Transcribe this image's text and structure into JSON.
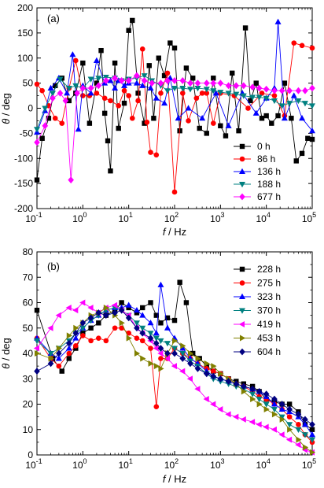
{
  "figure": {
    "panel_a": {
      "label": "(a)",
      "xlabel_var": "f",
      "xlabel_unit": " / Hz",
      "ylabel_var": "θ",
      "ylabel_unit": " / deg",
      "yticks": [
        "-200",
        "-150",
        "-100",
        "-50",
        "0",
        "50",
        "100",
        "150",
        "200"
      ],
      "xticks_base": [
        "10",
        "10",
        "10",
        "10",
        "10",
        "10",
        "10"
      ],
      "xticks_exp": [
        "-1",
        "0",
        "1",
        "2",
        "3",
        "4",
        "5"
      ]
    },
    "panel_b": {
      "label": "(b)",
      "xlabel_var": "f",
      "xlabel_unit": " / Hz",
      "ylabel_var": "θ",
      "ylabel_unit": " / deg",
      "yticks": [
        "0",
        "10",
        "20",
        "30",
        "40",
        "50",
        "60",
        "70",
        "80"
      ],
      "xticks_base": [
        "10",
        "10",
        "10",
        "10",
        "10",
        "10",
        "10"
      ],
      "xticks_exp": [
        "-1",
        "0",
        "1",
        "2",
        "3",
        "4",
        "5"
      ]
    }
  },
  "chart_data": [
    {
      "type": "line",
      "panel": "(a)",
      "xscale": "log",
      "xlim": [
        0.1,
        100000
      ],
      "ylim": [
        -200,
        200
      ],
      "xlabel": "f / Hz",
      "ylabel": "θ / deg",
      "legend_position": "bottom-right",
      "series": [
        {
          "name": "0 h",
          "color": "#000000",
          "marker": "square",
          "x": [
            0.1,
            0.13,
            0.18,
            0.25,
            0.35,
            0.5,
            0.7,
            1,
            1.4,
            2,
            2.5,
            3,
            3.5,
            4,
            5,
            6,
            8,
            10,
            12,
            16,
            22,
            28,
            35,
            45,
            60,
            80,
            100,
            130,
            180,
            250,
            350,
            500,
            700,
            1000,
            1300,
            1800,
            2500,
            3500,
            4500,
            6000,
            8000,
            10000,
            13000,
            18000,
            25000,
            35000,
            45000,
            60000,
            80000,
            100000
          ],
          "y": [
            -143,
            -60,
            -20,
            45,
            60,
            15,
            30,
            90,
            -30,
            50,
            115,
            -10,
            -65,
            -125,
            90,
            -40,
            10,
            155,
            175,
            30,
            -30,
            85,
            -20,
            100,
            65,
            130,
            120,
            -45,
            80,
            60,
            -40,
            -50,
            60,
            -35,
            -55,
            70,
            -45,
            160,
            15,
            50,
            -20,
            -15,
            -30,
            -15,
            50,
            -20,
            -105,
            -90,
            -60,
            -62
          ]
        },
        {
          "name": "86 h",
          "color": "#ff0000",
          "marker": "circle",
          "x": [
            0.1,
            0.13,
            0.18,
            0.25,
            0.35,
            0.5,
            0.7,
            1,
            1.4,
            2,
            3,
            4,
            6,
            8,
            10,
            12,
            16,
            20,
            25,
            30,
            40,
            50,
            70,
            100,
            150,
            200,
            300,
            400,
            500,
            700,
            1000,
            2000,
            4000,
            8000,
            15000,
            25000,
            40000,
            60000,
            100000
          ],
          "y": [
            48,
            35,
            5,
            -20,
            -30,
            40,
            95,
            25,
            25,
            30,
            20,
            15,
            5,
            35,
            25,
            -20,
            15,
            118,
            -28,
            -88,
            -93,
            30,
            70,
            -167,
            30,
            -25,
            20,
            30,
            30,
            -30,
            30,
            25,
            0,
            30,
            25,
            -15,
            130,
            125,
            120
          ]
        },
        {
          "name": "136 h",
          "color": "#0000ff",
          "marker": "triangle-up",
          "x": [
            0.1,
            0.15,
            0.2,
            0.3,
            0.45,
            0.6,
            0.8,
            1,
            1.5,
            2,
            3,
            4,
            5,
            6,
            8,
            10,
            15,
            20,
            30,
            40,
            60,
            80,
            120,
            200,
            400,
            800,
            1500,
            3000,
            6000,
            10000,
            15000,
            18000,
            25000,
            40000,
            60000,
            100000
          ],
          "y": [
            -48,
            -5,
            40,
            60,
            30,
            107,
            -42,
            45,
            30,
            95,
            50,
            55,
            40,
            55,
            45,
            50,
            50,
            45,
            40,
            20,
            10,
            60,
            -20,
            0,
            -20,
            30,
            -35,
            30,
            -10,
            20,
            40,
            172,
            -20,
            25,
            -20,
            -45
          ]
        },
        {
          "name": "188 h",
          "color": "#008080",
          "marker": "triangle-down",
          "x": [
            0.1,
            0.15,
            0.22,
            0.32,
            0.5,
            0.7,
            1,
            1.5,
            2.2,
            3.2,
            5,
            7,
            10,
            15,
            22,
            32,
            50,
            70,
            100,
            150,
            220,
            320,
            500,
            700,
            1000,
            1500,
            2200,
            3200,
            5000,
            7000,
            10000,
            15000,
            22000,
            32000,
            50000,
            70000,
            100000
          ],
          "y": [
            -42,
            0,
            30,
            58,
            40,
            45,
            40,
            58,
            60,
            62,
            60,
            55,
            58,
            60,
            65,
            55,
            45,
            35,
            40,
            40,
            38,
            40,
            38,
            35,
            32,
            30,
            28,
            25,
            22,
            22,
            20,
            15,
            5,
            10,
            15,
            10,
            5
          ]
        },
        {
          "name": "677 h",
          "color": "#ff00ff",
          "marker": "diamond",
          "x": [
            0.1,
            0.15,
            0.22,
            0.32,
            0.42,
            0.55,
            0.75,
            1,
            1.5,
            2.2,
            3.2,
            5,
            7,
            10,
            15,
            22,
            32,
            50,
            70,
            100,
            150,
            220,
            320,
            500,
            700,
            1000,
            1500,
            2200,
            3200,
            5000,
            7000,
            10000,
            15000,
            22000,
            32000,
            50000,
            70000,
            100000
          ],
          "y": [
            -68,
            -35,
            20,
            30,
            15,
            -143,
            30,
            40,
            40,
            45,
            55,
            60,
            55,
            55,
            65,
            55,
            50,
            50,
            55,
            55,
            55,
            50,
            50,
            50,
            50,
            50,
            45,
            45,
            45,
            42,
            40,
            38,
            35,
            35,
            35,
            35,
            35,
            40
          ]
        }
      ]
    },
    {
      "type": "line",
      "panel": "(b)",
      "xscale": "log",
      "xlim": [
        0.1,
        100000
      ],
      "ylim": [
        0,
        80
      ],
      "xlabel": "f / Hz",
      "ylabel": "θ / deg",
      "legend_position": "top-right",
      "series": [
        {
          "name": "228 h",
          "color": "#000000",
          "marker": "square",
          "x": [
            0.1,
            0.22,
            0.35,
            0.5,
            0.7,
            1,
            1.5,
            2.2,
            3.2,
            5,
            7,
            10,
            15,
            20,
            30,
            40,
            50,
            70,
            100,
            130,
            180,
            250,
            350,
            500,
            700,
            1000,
            1500,
            2200,
            3200,
            5000,
            7000,
            10000,
            15000,
            22000,
            32000,
            50000,
            70000,
            100000
          ],
          "y": [
            57,
            38,
            33,
            38,
            42,
            48,
            50,
            52,
            55,
            57,
            60,
            58,
            56,
            58,
            60,
            55,
            52,
            54,
            53,
            68,
            60,
            40,
            38,
            35,
            33,
            32,
            30,
            29,
            28,
            27,
            25,
            22,
            21,
            20,
            20,
            17,
            12,
            10
          ]
        },
        {
          "name": "275 h",
          "color": "#ff0000",
          "marker": "circle",
          "x": [
            0.1,
            0.2,
            0.3,
            0.5,
            0.7,
            1,
            1.5,
            2.2,
            3.2,
            5,
            7,
            10,
            15,
            20,
            30,
            40,
            50,
            70,
            100,
            150,
            220,
            320,
            500,
            700,
            1000,
            1500,
            2200,
            3200,
            5000,
            7000,
            10000,
            15000,
            22000,
            32000,
            50000,
            70000,
            100000
          ],
          "y": [
            46,
            38,
            35,
            40,
            43,
            47,
            45,
            46,
            45,
            50,
            50,
            48,
            46,
            45,
            42,
            19,
            38,
            38,
            42,
            40,
            38,
            36,
            34,
            33,
            32,
            30,
            28,
            27,
            25,
            23,
            22,
            20,
            18,
            15,
            12,
            8,
            5
          ]
        },
        {
          "name": "323 h",
          "color": "#0000ff",
          "marker": "triangle-up",
          "x": [
            0.1,
            0.2,
            0.3,
            0.5,
            0.7,
            1,
            1.5,
            2.2,
            3.2,
            5,
            7,
            10,
            15,
            20,
            30,
            40,
            50,
            70,
            100,
            150,
            220,
            320,
            500,
            700,
            1000,
            1500,
            2200,
            3200,
            5000,
            7000,
            10000,
            15000,
            22000,
            32000,
            50000,
            70000,
            100000
          ],
          "y": [
            46,
            40,
            38,
            42,
            46,
            50,
            53,
            55,
            57,
            58,
            58,
            59,
            57,
            55,
            52,
            48,
            67,
            50,
            46,
            42,
            38,
            36,
            33,
            31,
            30,
            29,
            28,
            27,
            26,
            25,
            23,
            20,
            18,
            17,
            15,
            12,
            8
          ]
        },
        {
          "name": "370 h",
          "color": "#008080",
          "marker": "triangle-down",
          "x": [
            0.1,
            0.2,
            0.3,
            0.5,
            0.7,
            1,
            1.5,
            2.2,
            3.2,
            5,
            7,
            10,
            15,
            20,
            30,
            40,
            50,
            70,
            100,
            150,
            220,
            320,
            500,
            700,
            1000,
            1500,
            2200,
            3200,
            5000,
            7000,
            10000,
            15000,
            22000,
            32000,
            50000,
            70000,
            100000
          ],
          "y": [
            45,
            40,
            42,
            45,
            48,
            50,
            53,
            55,
            57,
            58,
            57,
            55,
            52,
            50,
            48,
            46,
            45,
            44,
            42,
            40,
            37,
            35,
            32,
            30,
            29,
            28,
            27,
            26,
            24,
            22,
            20,
            18,
            15,
            12,
            10,
            8,
            6
          ]
        },
        {
          "name": "419 h",
          "color": "#ff00ff",
          "marker": "triangle-left",
          "x": [
            0.1,
            0.2,
            0.3,
            0.5,
            0.7,
            1,
            1.5,
            2.2,
            3.2,
            5,
            7,
            10,
            15,
            20,
            30,
            40,
            50,
            70,
            100,
            150,
            220,
            320,
            500,
            700,
            1000,
            1500,
            2200,
            3200,
            5000,
            7000,
            10000,
            15000,
            22000,
            32000,
            50000,
            70000,
            100000
          ],
          "y": [
            42,
            50,
            55,
            58,
            57,
            60,
            58,
            56,
            58,
            59,
            57,
            55,
            50,
            48,
            45,
            42,
            40,
            38,
            35,
            33,
            30,
            26,
            22,
            20,
            18,
            16,
            15,
            14,
            13,
            12,
            11,
            10,
            8,
            6,
            4,
            2,
            1
          ]
        },
        {
          "name": "453 h",
          "color": "#808000",
          "marker": "triangle-right",
          "x": [
            0.1,
            0.2,
            0.3,
            0.5,
            0.7,
            1,
            1.5,
            2.2,
            3.2,
            5,
            7,
            10,
            15,
            20,
            30,
            40,
            50,
            70,
            100,
            150,
            220,
            320,
            500,
            700,
            1000,
            1500,
            2200,
            3200,
            5000,
            7000,
            10000,
            15000,
            22000,
            32000,
            50000,
            70000,
            100000
          ],
          "y": [
            40,
            38,
            42,
            47,
            50,
            52,
            55,
            56,
            58,
            55,
            52,
            46,
            40,
            38,
            36,
            35,
            34,
            40,
            45,
            43,
            40,
            38,
            36,
            35,
            32,
            30,
            28,
            25,
            22,
            20,
            18,
            16,
            14,
            10,
            6,
            3,
            1
          ]
        },
        {
          "name": "604 h",
          "color": "#000080",
          "marker": "diamond",
          "x": [
            0.1,
            0.2,
            0.3,
            0.5,
            0.7,
            1,
            1.5,
            2.2,
            3.2,
            5,
            7,
            10,
            15,
            20,
            30,
            40,
            50,
            70,
            100,
            150,
            220,
            320,
            500,
            700,
            1000,
            1500,
            2200,
            3200,
            5000,
            7000,
            10000,
            15000,
            22000,
            32000,
            50000,
            70000,
            100000
          ],
          "y": [
            33,
            36,
            40,
            44,
            48,
            52,
            54,
            56,
            55,
            56,
            57,
            54,
            50,
            48,
            46,
            44,
            42,
            40,
            40,
            38,
            36,
            34,
            32,
            31,
            30,
            29,
            28,
            27,
            26,
            25,
            24,
            22,
            20,
            18,
            16,
            14,
            12
          ]
        }
      ]
    }
  ]
}
